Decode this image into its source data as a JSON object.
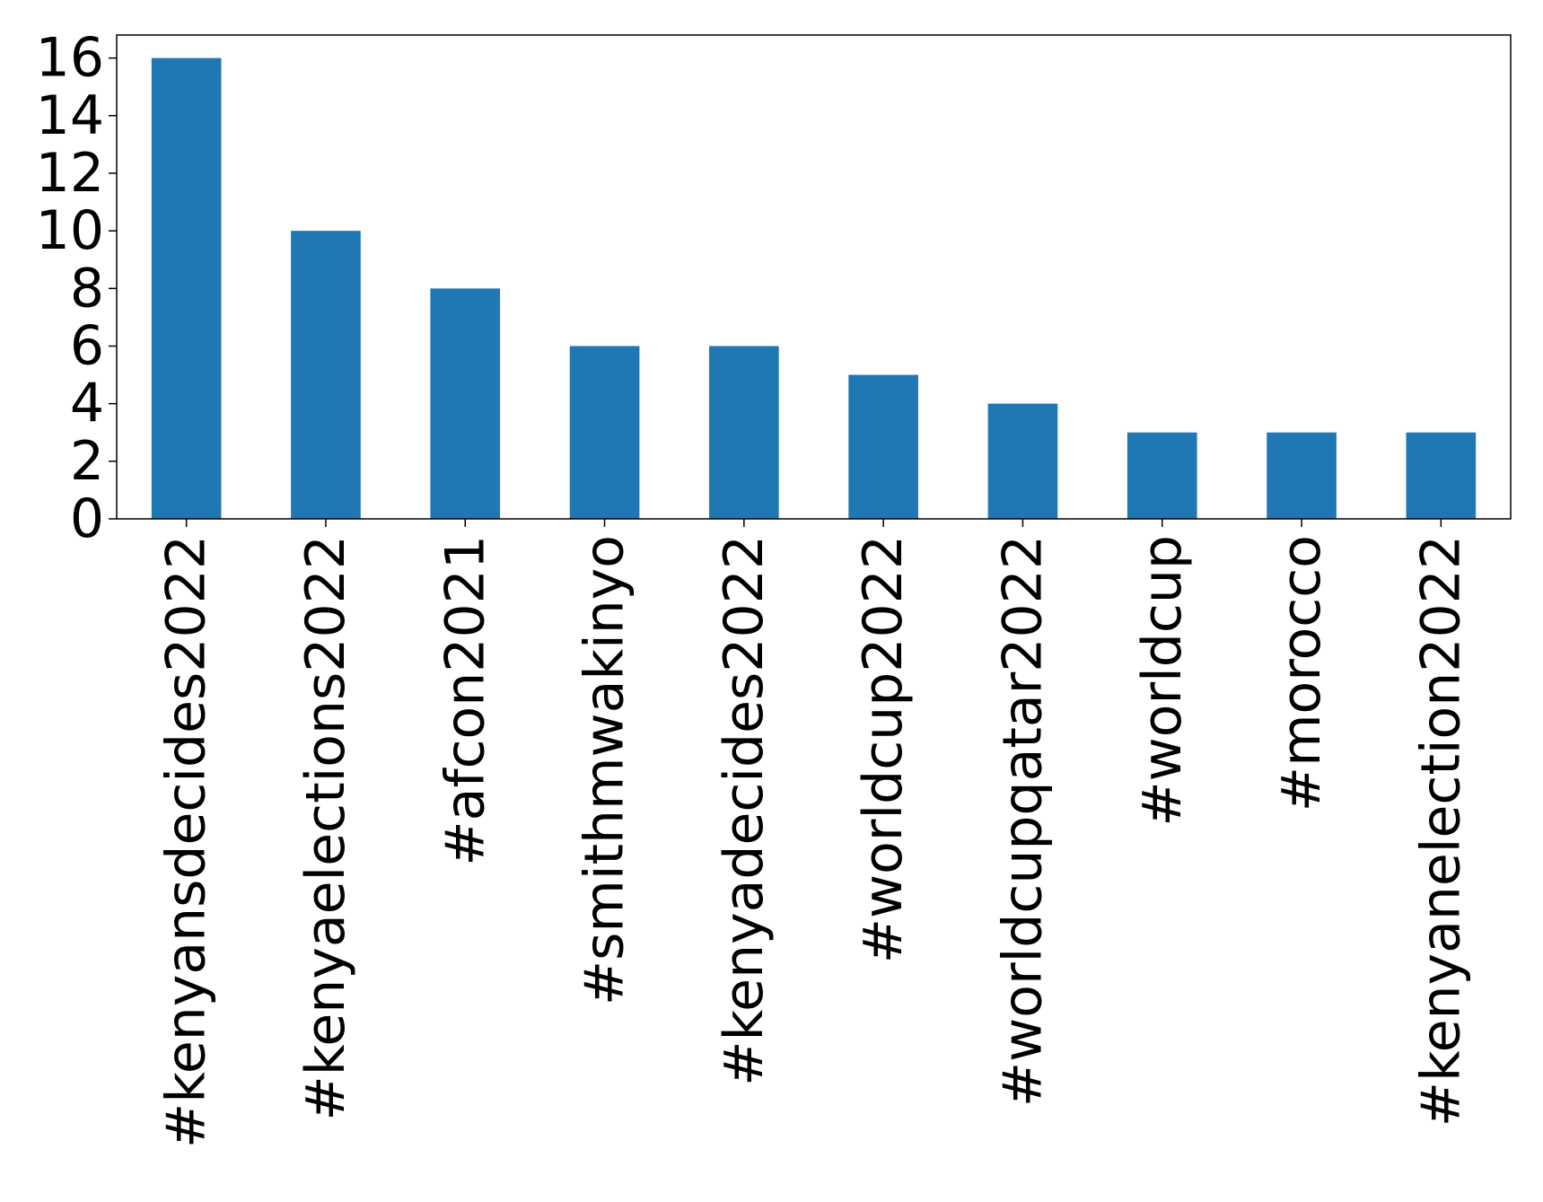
{
  "chart_data": {
    "type": "bar",
    "categories": [
      "#kenyansdecides2022",
      "#kenyaelections2022",
      "#afcon2021",
      "#smithmwakinyo",
      "#kenyadecides2022",
      "#worldcup2022",
      "#worldcupqatar2022",
      "#worldcup",
      "#morocco",
      "#kenyanelection2022"
    ],
    "values": [
      16,
      10,
      8,
      6,
      6,
      5,
      4,
      3,
      3,
      3
    ],
    "title": "",
    "xlabel": "",
    "ylabel": "",
    "ylim": [
      0,
      16.8
    ],
    "yticks": [
      0,
      2,
      4,
      6,
      8,
      10,
      12,
      14,
      16
    ],
    "grid": false,
    "legend": "none",
    "bar_color": "#1f77b4"
  }
}
